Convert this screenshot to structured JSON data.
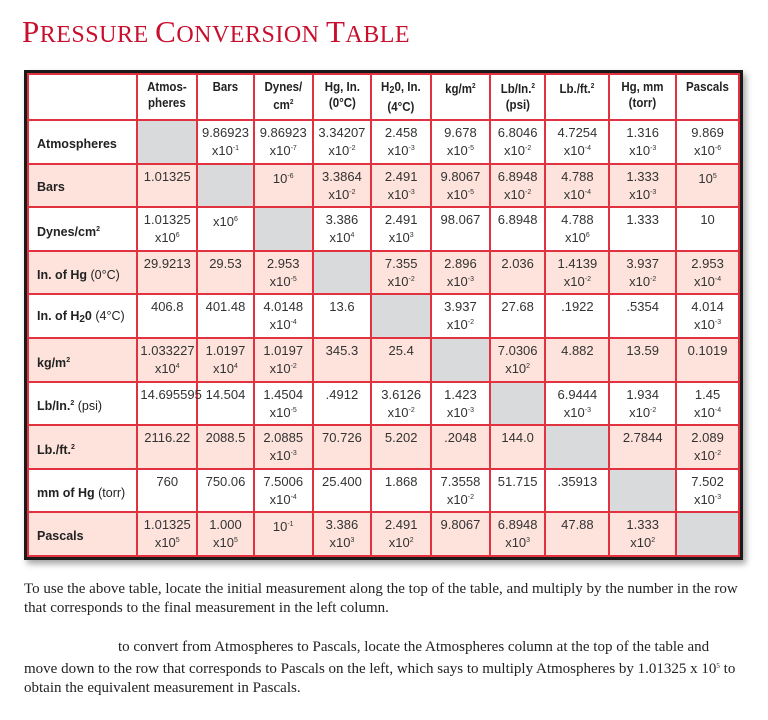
{
  "title": {
    "word1_first": "P",
    "word1_rest": "RESSURE",
    "word2_first": "C",
    "word2_rest": "ONVERSION",
    "word3_first": "T",
    "word3_rest": "ABLE",
    "full": "Pressure Conversion Table"
  },
  "colors": {
    "title_red": "#c8102e",
    "grid_red": "#e2323f",
    "pink_row": "#fde3dc",
    "gray_cell": "#d9dadc",
    "border_dark": "#1a1a1a"
  },
  "columns": [
    {
      "line1": "Atmos-",
      "line2": "pheres"
    },
    {
      "line1": "Bars",
      "line2": ""
    },
    {
      "line1": "Dynes/",
      "line2": "cm",
      "line2_sup": "2"
    },
    {
      "line1": "Hg, In.",
      "line2": "(0°C)"
    },
    {
      "line1_pre": "H",
      "line1_sub": "2",
      "line1_post": "0, In.",
      "line2": "(4°C)"
    },
    {
      "line1": "kg/m",
      "line1_sup": "2",
      "line2": ""
    },
    {
      "line1": "Lb/In.",
      "line1_sup": "2",
      "line2": "(psi)"
    },
    {
      "line1": "Lb./ft.",
      "line1_sup": "2",
      "line2": ""
    },
    {
      "line1": "Hg, mm",
      "line2": "(torr)"
    },
    {
      "line1": "Pascals",
      "line2": ""
    }
  ],
  "rows": [
    {
      "label": "Atmospheres",
      "cells": [
        {
          "gray": true
        },
        {
          "num": "9.86923",
          "exp": "-1"
        },
        {
          "num": "9.86923",
          "exp": "-7"
        },
        {
          "num": "3.34207",
          "exp": "-2"
        },
        {
          "num": "2.458",
          "exp": "-3"
        },
        {
          "num": "9.678",
          "exp": "-5"
        },
        {
          "num": "6.8046",
          "exp": "-2"
        },
        {
          "num": "4.7254",
          "exp": "-4"
        },
        {
          "num": "1.316",
          "exp": "-3"
        },
        {
          "num": "9.869",
          "exp": "-6"
        }
      ]
    },
    {
      "label": "Bars",
      "cells": [
        {
          "num": "1.01325"
        },
        {
          "gray": true
        },
        {
          "pow": "-6"
        },
        {
          "num": "3.3864",
          "exp": "-2"
        },
        {
          "num": "2.491",
          "exp": "-3"
        },
        {
          "num": "9.8067",
          "exp": "-5"
        },
        {
          "num": "6.8948",
          "exp": "-2"
        },
        {
          "num": "4.788",
          "exp": "-4"
        },
        {
          "num": "1.333",
          "exp": "-3"
        },
        {
          "pow": "5"
        }
      ]
    },
    {
      "label": "Dynes/cm",
      "label_sup": "2",
      "cells": [
        {
          "num": "1.01325",
          "exp": "6"
        },
        {
          "exp_only": "6"
        },
        {
          "gray": true
        },
        {
          "num": "3.386",
          "exp": "4"
        },
        {
          "num": "2.491",
          "exp": "3"
        },
        {
          "num": "98.067"
        },
        {
          "num": "6.8948"
        },
        {
          "num": "4.788",
          "exp": "6"
        },
        {
          "num": "1.333"
        },
        {
          "num": "10"
        }
      ]
    },
    {
      "label": "In. of Hg",
      "label_light": " (0°C)",
      "cells": [
        {
          "num": "29.9213"
        },
        {
          "num": "29.53"
        },
        {
          "num": "2.953",
          "exp": "-5"
        },
        {
          "gray": true
        },
        {
          "num": "7.355",
          "exp": "-2"
        },
        {
          "num": "2.896",
          "exp": "-3"
        },
        {
          "num": "2.036"
        },
        {
          "num": "1.4139",
          "exp": "-2"
        },
        {
          "num": "3.937",
          "exp": "-2"
        },
        {
          "num": "2.953",
          "exp": "-4"
        }
      ]
    },
    {
      "label": "In. of H",
      "label_sub": "2",
      "label_post": "0",
      "label_light": " (4°C)",
      "cells": [
        {
          "num": "406.8"
        },
        {
          "num": "401.48"
        },
        {
          "num": "4.0148",
          "exp": "-4"
        },
        {
          "num": "13.6"
        },
        {
          "gray": true
        },
        {
          "num": "3.937",
          "exp": "-2"
        },
        {
          "num": "27.68"
        },
        {
          "num": ".1922"
        },
        {
          "num": ".5354"
        },
        {
          "num": "4.014",
          "exp": "-3"
        }
      ]
    },
    {
      "label": "kg/m",
      "label_sup": "2",
      "cells": [
        {
          "num": "1.033227",
          "exp": "4"
        },
        {
          "num": "1.0197",
          "exp": "4"
        },
        {
          "num": "1.0197",
          "exp": "-2"
        },
        {
          "num": "345.3"
        },
        {
          "num": "25.4"
        },
        {
          "gray": true
        },
        {
          "num": "7.0306",
          "exp": "2"
        },
        {
          "num": "4.882"
        },
        {
          "num": "13.59"
        },
        {
          "num": "0.1019"
        }
      ]
    },
    {
      "label": "Lb/In.",
      "label_sup": "2",
      "label_light": " (psi)",
      "cells": [
        {
          "num": "14.695595"
        },
        {
          "num": "14.504"
        },
        {
          "num": "1.4504",
          "exp": "-5"
        },
        {
          "num": ".4912"
        },
        {
          "num": "3.6126",
          "exp": "-2"
        },
        {
          "num": "1.423",
          "exp": "-3"
        },
        {
          "gray": true
        },
        {
          "num": "6.9444",
          "exp": "-3"
        },
        {
          "num": "1.934",
          "exp": "-2"
        },
        {
          "num": "1.45",
          "exp": "-4"
        }
      ]
    },
    {
      "label": "Lb./ft.",
      "label_sup": "2",
      "cells": [
        {
          "num": "2116.22"
        },
        {
          "num": "2088.5"
        },
        {
          "num": "2.0885",
          "exp": "-3"
        },
        {
          "num": "70.726"
        },
        {
          "num": "5.202"
        },
        {
          "num": ".2048"
        },
        {
          "num": "144.0"
        },
        {
          "gray": true
        },
        {
          "num": "2.7844"
        },
        {
          "num": "2.089",
          "exp": "-2"
        }
      ]
    },
    {
      "label": "mm of Hg",
      "label_light": " (torr)",
      "cells": [
        {
          "num": "760"
        },
        {
          "num": "750.06"
        },
        {
          "num": "7.5006",
          "exp": "-4"
        },
        {
          "num": "25.400"
        },
        {
          "num": "1.868"
        },
        {
          "num": "7.3558",
          "exp": "-2"
        },
        {
          "num": "51.715"
        },
        {
          "num": ".35913"
        },
        {
          "gray": true
        },
        {
          "num": "7.502",
          "exp": "-3"
        }
      ]
    },
    {
      "label": "Pascals",
      "cells": [
        {
          "num": "1.01325",
          "exp": "5"
        },
        {
          "num": "1.000",
          "exp": "5"
        },
        {
          "pow": "-1"
        },
        {
          "num": "3.386",
          "exp": "3"
        },
        {
          "num": "2.491",
          "exp": "2"
        },
        {
          "num": "9.8067"
        },
        {
          "num": "6.8948",
          "exp": "3"
        },
        {
          "num": "47.88"
        },
        {
          "num": "1.333",
          "exp": "2"
        },
        {
          "gray": true
        }
      ]
    }
  ],
  "paragraphs": {
    "p1": "To use the above table, locate the initial measurement along the top of the table, and multiply by the number in the row that corresponds to the final measurement in the left column.",
    "p2_main": "to convert from Atmospheres to Pascals, locate the Atmospheres column at the top of the table and move down to the row that corresponds to Pascals on the left, which says to multiply Atmospheres by 1.01325 x 10",
    "p2_sup": "5",
    "p2_tail": " to obtain the equivalent measurement in Pascals."
  }
}
